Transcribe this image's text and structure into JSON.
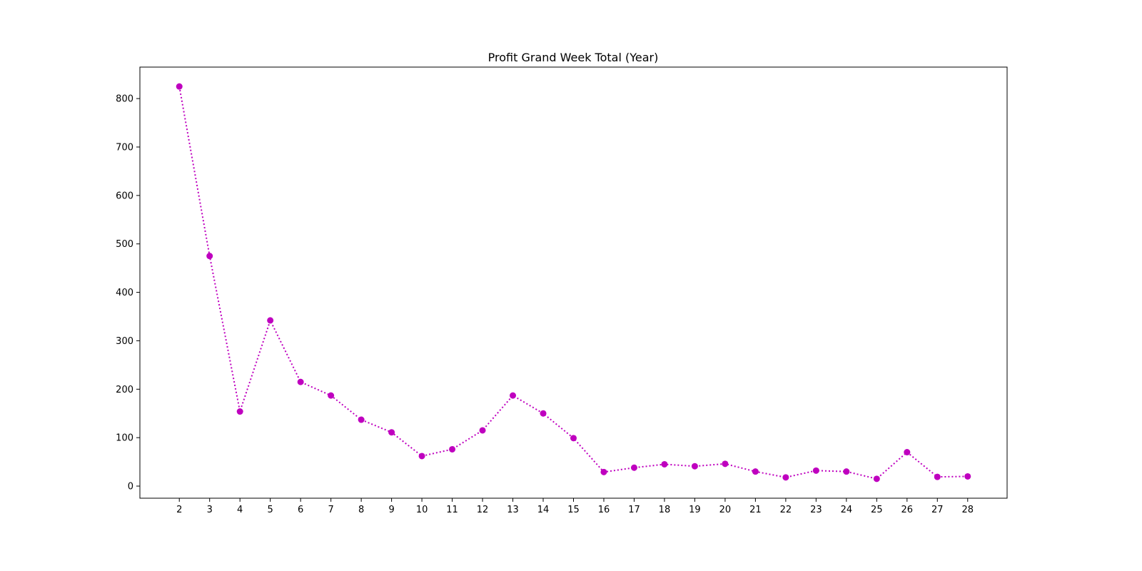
{
  "chart_data": {
    "type": "line",
    "title": "Profit Grand Week Total (Year)",
    "xlabel": "",
    "ylabel": "",
    "x": [
      2,
      3,
      4,
      5,
      6,
      7,
      8,
      9,
      10,
      11,
      12,
      13,
      14,
      15,
      16,
      17,
      18,
      19,
      20,
      21,
      22,
      23,
      24,
      25,
      26,
      27,
      28
    ],
    "series": [
      {
        "values": [
          825,
          475,
          154,
          342,
          215,
          187,
          137,
          111,
          62,
          76,
          115,
          187,
          150,
          99,
          29,
          38,
          45,
          41,
          46,
          30,
          18,
          32,
          30,
          15,
          70,
          19,
          20
        ],
        "color": "#bf00bf",
        "line_style": "dotted",
        "marker": "circle"
      }
    ],
    "xlim": [
      0.7,
      29.3
    ],
    "ylim": [
      -25,
      865
    ],
    "xticks": [
      2,
      3,
      4,
      5,
      6,
      7,
      8,
      9,
      10,
      11,
      12,
      13,
      14,
      15,
      16,
      17,
      18,
      19,
      20,
      21,
      22,
      23,
      24,
      25,
      26,
      27,
      28
    ],
    "yticks": [
      0,
      100,
      200,
      300,
      400,
      500,
      600,
      700,
      800
    ],
    "grid": false,
    "legend": "none"
  }
}
